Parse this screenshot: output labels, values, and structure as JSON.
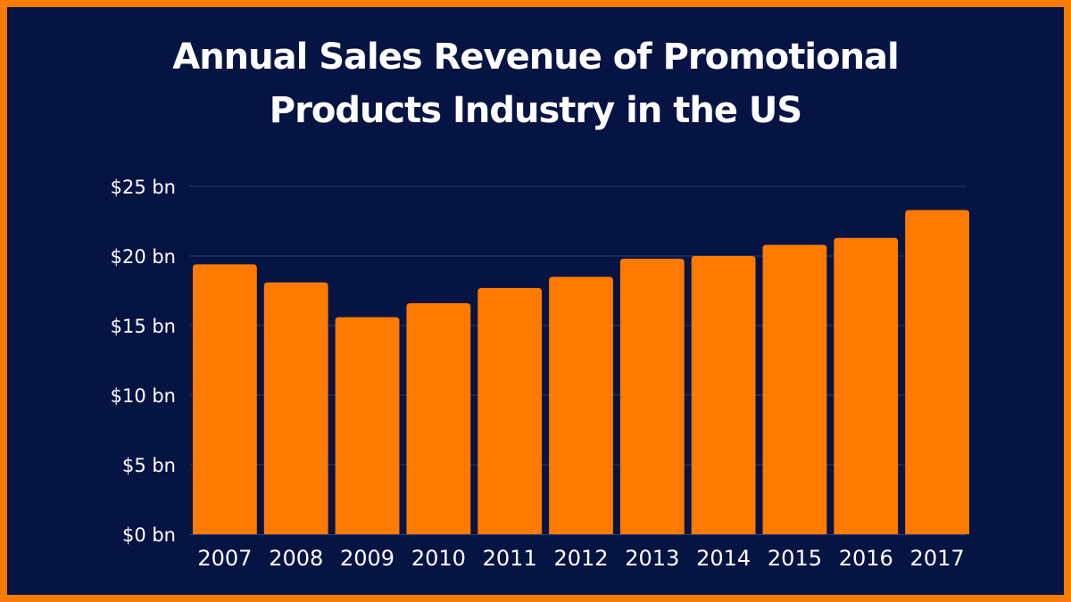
{
  "colors": {
    "background": "#061444",
    "border": "#f57c00",
    "bar": "#ff7a00",
    "gridline": "#2a3d73",
    "text": "#ffffff"
  },
  "chart_data": {
    "type": "bar",
    "title_lines": [
      "Annual Sales Revenue of Promotional",
      "Products Industry in the US"
    ],
    "categories": [
      "2007",
      "2008",
      "2009",
      "2010",
      "2011",
      "2012",
      "2013",
      "2014",
      "2015",
      "2016",
      "2017"
    ],
    "values": [
      19.4,
      18.1,
      15.6,
      16.6,
      17.7,
      18.5,
      19.8,
      20.0,
      20.8,
      21.3,
      23.3
    ],
    "ylim": [
      0,
      25
    ],
    "yticks": [
      0,
      5,
      10,
      15,
      20,
      25
    ],
    "ytick_labels": [
      "$0 bn",
      "$5 bn",
      "$10 bn",
      "$15 bn",
      "$20 bn",
      "$25 bn"
    ],
    "xlabel": "",
    "ylabel": "",
    "grid": true
  }
}
